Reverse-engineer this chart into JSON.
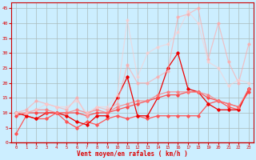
{
  "bg_color": "#cceeff",
  "grid_color": "#aabbbb",
  "xlabel": "Vent moyen/en rafales ( km/h )",
  "xlim": [
    -0.5,
    23.5
  ],
  "ylim": [
    0,
    47
  ],
  "yticks": [
    0,
    5,
    10,
    15,
    20,
    25,
    30,
    35,
    40,
    45
  ],
  "xticks": [
    0,
    1,
    2,
    3,
    4,
    5,
    6,
    7,
    8,
    9,
    10,
    11,
    12,
    13,
    14,
    15,
    16,
    17,
    18,
    19,
    20,
    21,
    22,
    23
  ],
  "series": [
    {
      "x": [
        0,
        1,
        2,
        3,
        4,
        5,
        6,
        7,
        8,
        9,
        10,
        11,
        12,
        13,
        14,
        15,
        16,
        17,
        18,
        19,
        20,
        21,
        22,
        23
      ],
      "y": [
        3,
        9,
        8,
        8,
        10,
        7,
        5,
        7,
        6,
        8,
        9,
        8,
        9,
        8,
        9,
        9,
        9,
        9,
        9,
        13,
        14,
        12,
        11,
        18
      ],
      "color": "#ff5555",
      "alpha": 1.0,
      "lw": 0.9,
      "marker": "D",
      "ms": 1.8
    },
    {
      "x": [
        0,
        1,
        2,
        3,
        4,
        5,
        6,
        7,
        8,
        9,
        10,
        11,
        12,
        13,
        14,
        15,
        16,
        17,
        18,
        19,
        20,
        21,
        22,
        23
      ],
      "y": [
        10,
        9,
        8,
        10,
        10,
        9,
        7,
        6,
        9,
        9,
        15,
        22,
        9,
        9,
        15,
        25,
        30,
        18,
        17,
        13,
        11,
        11,
        11,
        18
      ],
      "color": "#ee0000",
      "alpha": 1.0,
      "lw": 0.9,
      "marker": "D",
      "ms": 1.8
    },
    {
      "x": [
        0,
        1,
        2,
        3,
        4,
        5,
        6,
        7,
        8,
        9,
        10,
        11,
        12,
        13,
        14,
        15,
        16,
        17,
        18,
        19,
        20,
        21,
        22,
        23
      ],
      "y": [
        9,
        10,
        10,
        10,
        10,
        10,
        10,
        9,
        10,
        10,
        11,
        12,
        13,
        14,
        15,
        16,
        16,
        17,
        17,
        15,
        14,
        13,
        12,
        17
      ],
      "color": "#ff4444",
      "alpha": 0.9,
      "lw": 0.9,
      "marker": "D",
      "ms": 1.8
    },
    {
      "x": [
        0,
        1,
        2,
        3,
        4,
        5,
        6,
        7,
        8,
        9,
        10,
        11,
        12,
        13,
        14,
        15,
        16,
        17,
        18,
        19,
        20,
        21,
        22,
        23
      ],
      "y": [
        10,
        10,
        11,
        11,
        10,
        10,
        11,
        10,
        11,
        10,
        12,
        13,
        14,
        14,
        16,
        17,
        17,
        17,
        17,
        16,
        14,
        13,
        12,
        18
      ],
      "color": "#ff7777",
      "alpha": 0.75,
      "lw": 0.9,
      "marker": "D",
      "ms": 1.8
    },
    {
      "x": [
        0,
        1,
        2,
        3,
        4,
        5,
        6,
        7,
        8,
        9,
        10,
        11,
        12,
        13,
        14,
        15,
        16,
        17,
        18,
        19,
        20,
        21,
        22,
        23
      ],
      "y": [
        10,
        11,
        14,
        13,
        12,
        11,
        15,
        9,
        12,
        11,
        13,
        26,
        20,
        20,
        22,
        24,
        42,
        43,
        45,
        28,
        40,
        27,
        20,
        33
      ],
      "color": "#ffaaaa",
      "alpha": 0.65,
      "lw": 0.9,
      "marker": "D",
      "ms": 1.8
    },
    {
      "x": [
        0,
        1,
        2,
        3,
        4,
        5,
        6,
        7,
        8,
        9,
        10,
        11,
        12,
        13,
        14,
        15,
        16,
        17,
        18,
        19,
        20,
        21,
        22,
        23
      ],
      "y": [
        10,
        10,
        11,
        13,
        12,
        12,
        14,
        10,
        12,
        12,
        16,
        41,
        22,
        30,
        32,
        33,
        37,
        44,
        40,
        27,
        25,
        19,
        21,
        20
      ],
      "color": "#ffcccc",
      "alpha": 0.55,
      "lw": 0.9,
      "marker": "D",
      "ms": 1.8
    }
  ]
}
